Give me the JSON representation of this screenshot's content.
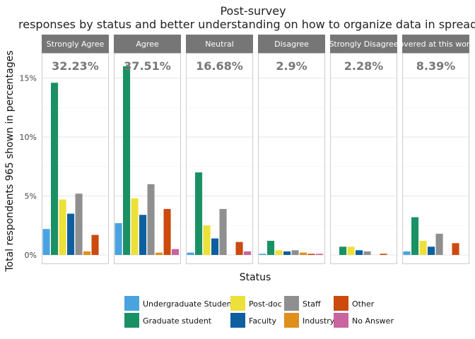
{
  "chart_data": {
    "type": "bar",
    "title": "Post-survey",
    "subtitle": "responses by status and better understanding on how to organize data in spreadsheets",
    "xlabel": "Status",
    "ylabel": "Total respondents 965 shown in percentages",
    "ylim": [
      0,
      16.5
    ],
    "yticks": [
      "0%",
      "5%",
      "10%",
      "15%"
    ],
    "grid": true,
    "legend_position": "bottom",
    "categories": [
      "Undergraduate Student",
      "Graduate student",
      "Post-doc",
      "Faculty",
      "Staff",
      "Industry",
      "Other",
      "No Answer"
    ],
    "colors": [
      "#4aa3df",
      "#1a9165",
      "#eee03a",
      "#0e5fa0",
      "#8f8f8f",
      "#e08f1a",
      "#cc4a0e",
      "#c9649c"
    ],
    "panels": [
      {
        "label": "Strongly Agree",
        "total": "32.23%",
        "values": [
          2.2,
          14.6,
          4.7,
          3.5,
          5.2,
          0.3,
          1.7,
          0
        ]
      },
      {
        "label": "Agree",
        "total": "37.51%",
        "values": [
          2.7,
          16.0,
          4.8,
          3.4,
          6.0,
          0.2,
          3.9,
          0.5
        ]
      },
      {
        "label": "Neutral",
        "total": "16.68%",
        "values": [
          0.2,
          7.0,
          2.5,
          1.4,
          3.9,
          0,
          1.1,
          0.3
        ]
      },
      {
        "label": "Disagree",
        "total": "2.9%",
        "values": [
          0.1,
          1.2,
          0.4,
          0.3,
          0.4,
          0.2,
          0.1,
          0.1
        ]
      },
      {
        "label": "Strongly Disagree",
        "total": "2.28%",
        "values": [
          0,
          0.7,
          0.7,
          0.4,
          0.3,
          0,
          0.1,
          0
        ]
      },
      {
        "label": "Not covered at this workshop",
        "total": "8.39%",
        "values": [
          0.3,
          3.2,
          1.2,
          0.7,
          1.8,
          0,
          1.0,
          0
        ]
      }
    ]
  }
}
